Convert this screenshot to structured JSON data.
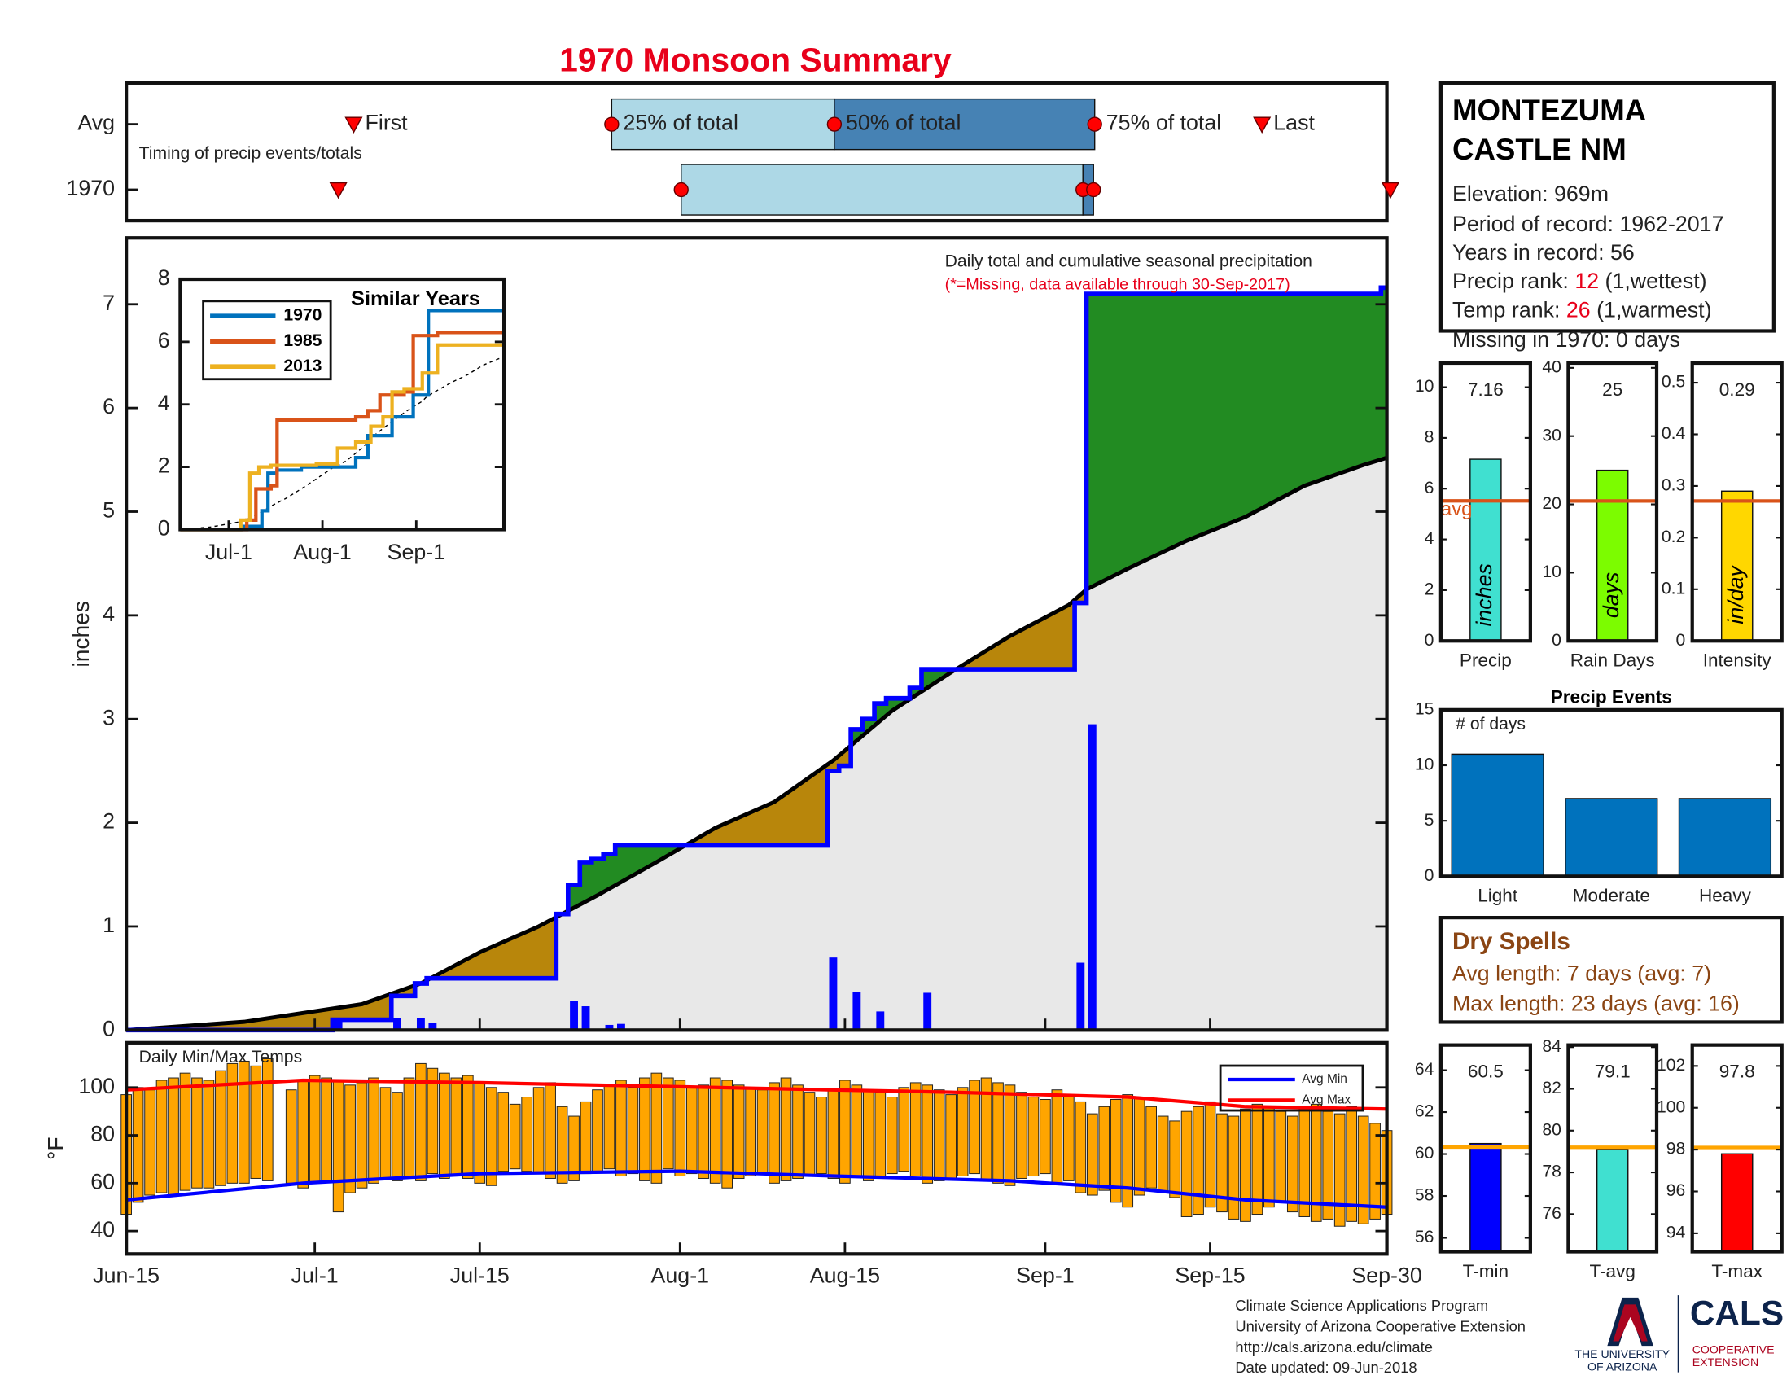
{
  "title": "1970 Monsoon Summary",
  "station": {
    "name_lines": [
      "MONTEZUMA",
      "CASTLE NM"
    ],
    "elevation": "Elevation: 969m",
    "period": "Period of record: 1962-2017",
    "years": "Years in record: 56",
    "precip_rank": {
      "label": "Precip rank: ",
      "rank": 12,
      "note": " (1,wettest)"
    },
    "temp_rank": {
      "label": "Temp rank: ",
      "rank": 26,
      "note": " (1,warmest)"
    },
    "missing": "Missing in 1970: 0 days"
  },
  "dry_spells": {
    "title": "Dry Spells",
    "avg_length": "Avg length: 7 days (avg: 7)",
    "max_length": "Max length: 23 days (avg: 16)"
  },
  "footer": [
    "Climate Science Applications Program",
    "University of Arizona Cooperative Extension",
    "http://cals.arizona.edu/climate",
    " Date updated: 09-Jun-2018"
  ],
  "logos": {
    "university": [
      "THE UNIVERSITY",
      "OF ARIZONA"
    ],
    "cals": "CALS",
    "extension": [
      "COOPERATIVE",
      "EXTENSION"
    ]
  },
  "chart_data": [
    {
      "type": "timing",
      "label": "Timing of precip events/totals",
      "xlim": [
        0,
        107
      ],
      "marker_labels": {
        "first": "First",
        "p25": "25% of total",
        "p50": "50% of total",
        "p75": "75% of total",
        "last": "Last"
      },
      "colors": {
        "early": "#add8e6",
        "late": "#4682b4",
        "marker": "#ff0000"
      },
      "rows": [
        {
          "name": "Avg",
          "first": 19.3,
          "p25": 41.2,
          "p50": 60.1,
          "p75": 82.2,
          "last": 96.4
        },
        {
          "name": "1970",
          "first": 18,
          "p25": 47.1,
          "p50": 81.2,
          "p75": 82.1,
          "last": 107.3
        }
      ]
    },
    {
      "type": "cumulative",
      "note": "Daily total and cumulative seasonal precipitation",
      "missing_note": "(*=Missing, data available through 30-Sep-2017)",
      "ylabel": "inches",
      "xlim": [
        0,
        107
      ],
      "ylim": [
        0,
        7.64
      ],
      "yticks": [
        0,
        1,
        2,
        3,
        4,
        5,
        6,
        7
      ],
      "colors": {
        "daily": "#0000ff",
        "cumulative": "#0000ff",
        "avg": "#000000",
        "above": "#228b22",
        "below": "#b8860b",
        "base": "#e8e8e8"
      },
      "daily_x": [
        18,
        23,
        25,
        26,
        34,
        38,
        39,
        41,
        42,
        60,
        62,
        64,
        68,
        81,
        82
      ],
      "daily_values": [
        0.1,
        0.12,
        0.12,
        0.07,
        0.01,
        0.28,
        0.23,
        0.05,
        0.06,
        0.7,
        0.37,
        0.18,
        0.36,
        0.65,
        2.95
      ],
      "cum_x": [
        0,
        17.5,
        22.5,
        24.5,
        25.5,
        36.5,
        37.5,
        38.5,
        39.5,
        40.5,
        41.5,
        59.5,
        60.5,
        61.5,
        62.5,
        63.5,
        64.5,
        66.5,
        67.5,
        80.5,
        81.5,
        106.5
      ],
      "cum_values": [
        0,
        0.1,
        0.33,
        0.45,
        0.5,
        1.12,
        1.4,
        1.62,
        1.65,
        1.7,
        1.78,
        2.5,
        2.55,
        2.9,
        3.0,
        3.15,
        3.2,
        3.3,
        3.48,
        4.12,
        7.1,
        7.16
      ],
      "avg_x": [
        0,
        10,
        20,
        25,
        30,
        35,
        37,
        40,
        45,
        50,
        55,
        60,
        65,
        70,
        75,
        80,
        81.5,
        85,
        90,
        95,
        100,
        105,
        107
      ],
      "avg_values": [
        0,
        0.08,
        0.25,
        0.45,
        0.75,
        1.0,
        1.12,
        1.3,
        1.62,
        1.95,
        2.2,
        2.6,
        3.08,
        3.45,
        3.8,
        4.1,
        4.25,
        4.45,
        4.72,
        4.95,
        5.25,
        5.45,
        5.52
      ]
    },
    {
      "type": "line",
      "title": "Similar Years",
      "xlim": [
        0,
        107
      ],
      "ylim": [
        0,
        8
      ],
      "yticks": [
        0,
        2,
        4,
        6,
        8
      ],
      "xticks": [
        {
          "value": 16,
          "label": "Jul-1"
        },
        {
          "value": 47,
          "label": "Aug-1"
        },
        {
          "value": 78,
          "label": "Sep-1"
        }
      ],
      "series": [
        {
          "name": "1970",
          "color": "#0072bd",
          "x": [
            0,
            20,
            27,
            29,
            32,
            40,
            58,
            62,
            70,
            77,
            82
          ],
          "values": [
            0,
            0.1,
            0.6,
            1.8,
            1.9,
            2.0,
            2.3,
            3.0,
            3.6,
            4.3,
            7.0
          ]
        },
        {
          "name": "1985",
          "color": "#d95319",
          "x": [
            0,
            22,
            25,
            30,
            32,
            58,
            62,
            66,
            74,
            77,
            85
          ],
          "values": [
            0,
            0.3,
            1.3,
            1.4,
            3.5,
            3.6,
            3.8,
            4.3,
            4.4,
            6.2,
            6.3
          ]
        },
        {
          "name": "2013",
          "color": "#edb120",
          "x": [
            0,
            20,
            23,
            26,
            30,
            45,
            52,
            58,
            63,
            67,
            70,
            74,
            80,
            85
          ],
          "values": [
            0,
            0.3,
            1.8,
            2.0,
            2.05,
            2.1,
            2.6,
            2.8,
            3.3,
            3.6,
            4.4,
            4.5,
            5.0,
            5.9
          ]
        }
      ]
    },
    {
      "type": "temps",
      "title": "Daily Min/Max Temps",
      "ylabel": "°F",
      "xlim": [
        0,
        107
      ],
      "ylim": [
        30.4,
        118.7
      ],
      "yticks": [
        40,
        60,
        80,
        100
      ],
      "xticks": [
        {
          "value": 0,
          "label": "Jun-15"
        },
        {
          "value": 16,
          "label": "Jul-1"
        },
        {
          "value": 30,
          "label": "Jul-15"
        },
        {
          "value": 47,
          "label": "Aug-1"
        },
        {
          "value": 61,
          "label": "Aug-15"
        },
        {
          "value": 78,
          "label": "Sep-1"
        },
        {
          "value": 92,
          "label": "Sep-15"
        },
        {
          "value": 107,
          "label": "Sep-30"
        }
      ],
      "bar_color": "#ffa500",
      "max": [
        97,
        100,
        99,
        103,
        104,
        106,
        104,
        103,
        107,
        110,
        111,
        109,
        112,
        null,
        99,
        103,
        105,
        104,
        103,
        101,
        102,
        104,
        100,
        98,
        104,
        110,
        108,
        106,
        104,
        105,
        102,
        100,
        98,
        93,
        96,
        100,
        102,
        92,
        88,
        94,
        99,
        101,
        103,
        100,
        104,
        106,
        104,
        103,
        100,
        101,
        104,
        103,
        101,
        100,
        99,
        102,
        104,
        101,
        98,
        96,
        99,
        103,
        101,
        99,
        98,
        96,
        100,
        102,
        101,
        99,
        97,
        100,
        103,
        104,
        102,
        101,
        98,
        96,
        95,
        99,
        97,
        94,
        89,
        92,
        95,
        97,
        96,
        92,
        88,
        86,
        90,
        92,
        94,
        89,
        88,
        91,
        93,
        92,
        90,
        88,
        91,
        93,
        90,
        89,
        92,
        88,
        85,
        82
      ],
      "min": [
        47,
        52,
        55,
        56,
        55,
        57,
        58,
        58,
        59,
        60,
        60,
        62,
        61,
        null,
        60,
        58,
        60,
        61,
        48,
        56,
        58,
        60,
        62,
        61,
        63,
        61,
        64,
        62,
        63,
        62,
        60,
        59,
        65,
        66,
        65,
        64,
        62,
        60,
        61,
        64,
        65,
        66,
        63,
        64,
        61,
        60,
        66,
        63,
        64,
        62,
        60,
        58,
        62,
        63,
        64,
        60,
        61,
        62,
        63,
        64,
        62,
        60,
        63,
        61,
        62,
        64,
        65,
        63,
        60,
        61,
        62,
        63,
        64,
        61,
        60,
        59,
        62,
        63,
        64,
        60,
        61,
        56,
        55,
        57,
        52,
        50,
        55,
        58,
        56,
        54,
        46,
        47,
        50,
        48,
        45,
        44,
        47,
        50,
        52,
        48,
        46,
        44,
        45,
        42,
        44,
        43,
        45,
        47
      ],
      "series": [
        {
          "name": "Avg Min",
          "color": "#0000ff",
          "x": [
            0,
            15,
            30,
            47,
            60,
            75,
            85,
            95,
            107
          ],
          "values": [
            53,
            60,
            64,
            65,
            63,
            61,
            58,
            53,
            50
          ]
        },
        {
          "name": "Avg Max",
          "color": "#ff0000",
          "x": [
            0,
            15,
            30,
            50,
            70,
            85,
            95,
            107
          ],
          "values": [
            99,
            103,
            102,
            100,
            98,
            96,
            92,
            91
          ]
        }
      ]
    },
    {
      "type": "bar-summary",
      "label": "Precip",
      "unit": "inches",
      "value": 7.16,
      "avg": 5.52,
      "avg_label": "avg",
      "color": "#40e0d0",
      "avg_color": "#d95319",
      "ylim": [
        0,
        10.95
      ],
      "yticks": [
        0,
        2,
        4,
        6,
        8,
        10
      ]
    },
    {
      "type": "bar-summary",
      "label": "Rain Days",
      "unit": "days",
      "value": 25,
      "avg": 20.5,
      "color": "#7cfc00",
      "avg_color": "#d95319",
      "ylim": [
        0,
        40.7
      ],
      "yticks": [
        0,
        10,
        20,
        30,
        40
      ]
    },
    {
      "type": "bar-summary",
      "label": "Intensity",
      "unit": "in/day",
      "value": 0.29,
      "avg": 0.271,
      "color": "#ffd700",
      "avg_color": "#d95319",
      "ylim": [
        0,
        0.538
      ],
      "yticks": [
        0,
        0.1,
        0.2,
        0.3,
        0.4,
        0.5
      ]
    },
    {
      "type": "bar",
      "title": "Precip Events",
      "ylabel": "# of days",
      "categories": [
        "Light",
        "Moderate",
        "Heavy"
      ],
      "values": [
        11,
        7,
        7
      ],
      "color": "#0072bd",
      "ylim": [
        0,
        15
      ],
      "yticks": [
        0,
        5,
        10,
        15
      ]
    },
    {
      "type": "bar-summary",
      "label": "T-min",
      "value": 60.5,
      "avg": 60.33,
      "color": "#0000ff",
      "avg_color": "#ffa500",
      "ylim": [
        55.34,
        65.2
      ],
      "yticks": [
        56,
        58,
        60,
        62,
        64
      ]
    },
    {
      "type": "bar-summary",
      "label": "T-avg",
      "value": 79.1,
      "avg": 79.2,
      "color": "#40e0d0",
      "avg_color": "#ffa500",
      "ylim": [
        74.2,
        84.1
      ],
      "yticks": [
        76,
        78,
        80,
        82,
        84
      ]
    },
    {
      "type": "bar-summary",
      "label": "T-max",
      "value": 97.8,
      "avg": 98.1,
      "color": "#ff0000",
      "avg_color": "#ffa500",
      "ylim": [
        93.12,
        103.0
      ],
      "yticks": [
        94,
        96,
        98,
        100,
        102
      ]
    }
  ]
}
